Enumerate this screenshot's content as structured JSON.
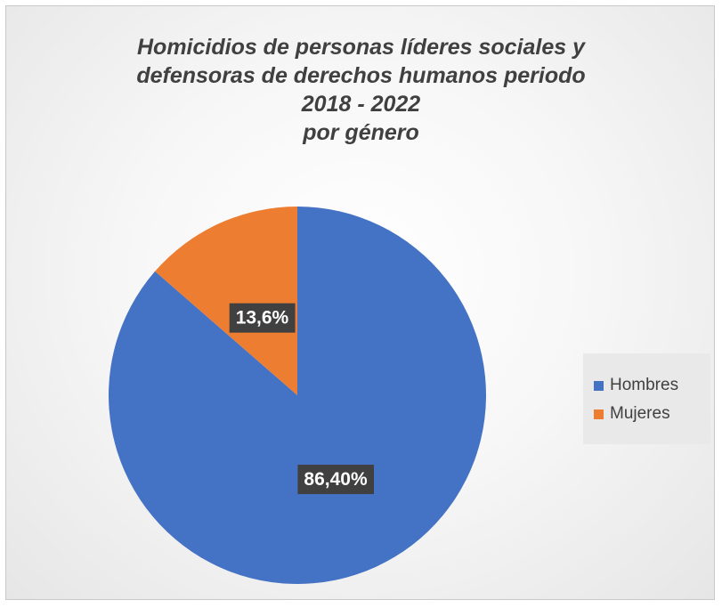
{
  "chart_data": {
    "type": "pie",
    "title_lines": [
      "Homicidios de personas líderes sociales y",
      "defensoras de derechos humanos periodo",
      "2018 - 2022",
      "por género"
    ],
    "slices": [
      {
        "name": "Hombres",
        "value": 86.4,
        "label": "86,40%",
        "color": "#4472c4"
      },
      {
        "name": "Mujeres",
        "value": 13.6,
        "label": "13,6%",
        "color": "#ed7d31"
      }
    ],
    "legend_position": "right"
  }
}
